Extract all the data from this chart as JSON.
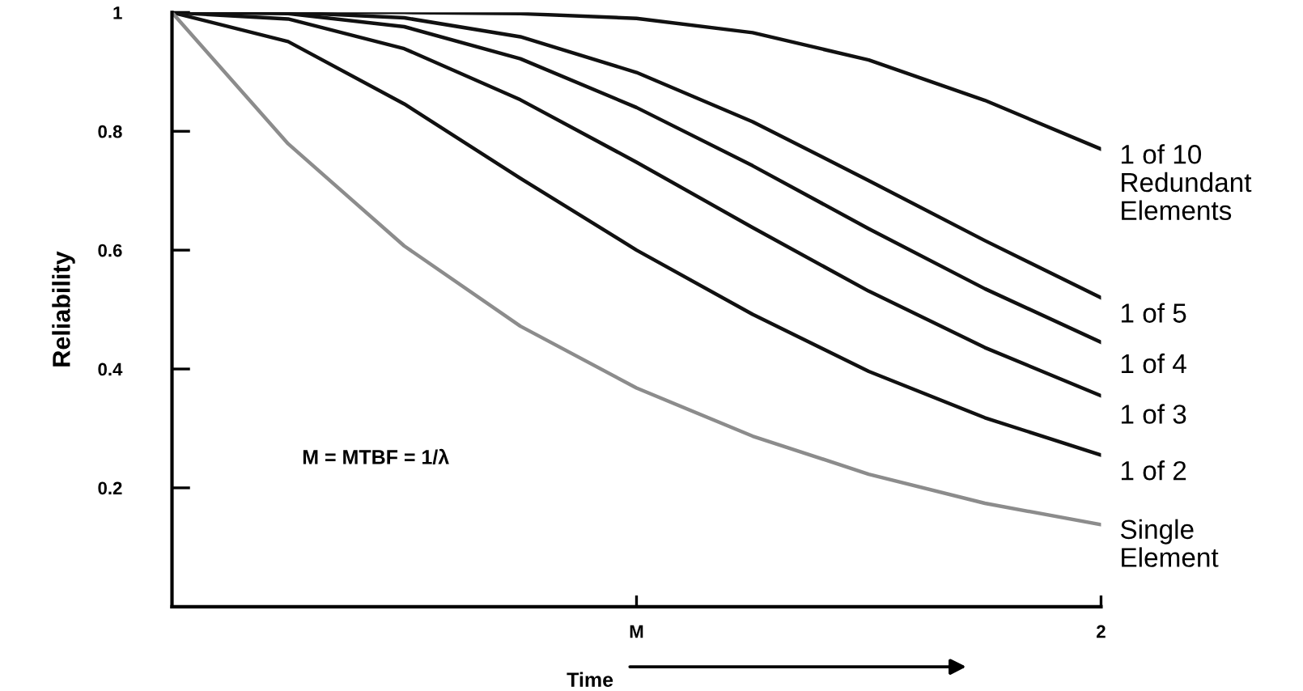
{
  "chart_data": {
    "type": "line",
    "xlabel": "Time",
    "ylabel": "Reliability",
    "categories": [
      null,
      null,
      null,
      null,
      "M",
      null,
      null,
      null,
      "2"
    ],
    "series": [
      {
        "name": "1 of 10 Redundant Elements",
        "color": "#111111",
        "values": [
          1,
          1,
          1,
          0.998,
          0.99,
          0.966,
          0.92,
          0.852,
          0.77
        ]
      },
      {
        "name": "1 of 5",
        "color": "#111111",
        "values": [
          1,
          1,
          0.991,
          0.959,
          0.899,
          0.816,
          0.717,
          0.616,
          0.52
        ]
      },
      {
        "name": "1 of 4",
        "color": "#111111",
        "values": [
          1,
          0.998,
          0.976,
          0.922,
          0.84,
          0.742,
          0.636,
          0.535,
          0.445
        ]
      },
      {
        "name": "1 of 3",
        "color": "#111111",
        "values": [
          1,
          0.989,
          0.939,
          0.853,
          0.748,
          0.638,
          0.531,
          0.436,
          0.355
        ]
      },
      {
        "name": "1 of 2",
        "color": "#111111",
        "values": [
          1,
          0.951,
          0.846,
          0.721,
          0.6,
          0.492,
          0.396,
          0.318,
          0.255
        ]
      },
      {
        "name": "Single Element",
        "color": "#8c8c8c",
        "values": [
          1,
          0.779,
          0.607,
          0.472,
          0.368,
          0.287,
          0.223,
          0.174,
          0.138
        ]
      }
    ],
    "ylim": [
      0,
      1
    ],
    "yticks": [
      {
        "value": 0.2,
        "label": "0.2"
      },
      {
        "value": 0.4,
        "label": "0.4"
      },
      {
        "value": 0.6,
        "label": "0.6"
      },
      {
        "value": 0.8,
        "label": "0.8"
      },
      1
    ],
    "annotations": [
      "M = MTBF = 1/λ"
    ],
    "grid": false,
    "legend": false,
    "marker": "none",
    "line_style": "solid"
  }
}
